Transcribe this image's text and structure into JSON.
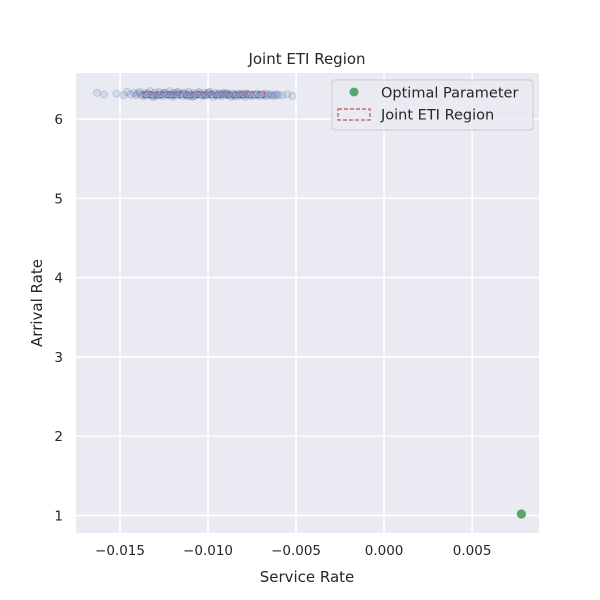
{
  "chart_data": {
    "type": "scatter",
    "title": "Joint ETI Region",
    "xlabel": "Service Rate",
    "ylabel": "Arrival Rate",
    "xlim": [
      -0.0175,
      0.0088
    ],
    "ylim": [
      0.78,
      6.58
    ],
    "x_ticks": [
      -0.015,
      -0.01,
      -0.005,
      0.0,
      0.005
    ],
    "x_tick_labels": [
      "−0.015",
      "−0.010",
      "−0.005",
      "0.000",
      "0.005"
    ],
    "y_ticks": [
      1,
      2,
      3,
      4,
      5,
      6
    ],
    "y_tick_labels": [
      "1",
      "2",
      "3",
      "4",
      "5",
      "6"
    ],
    "grid": true,
    "legend_position": "top-right",
    "background": "#eaeaf2",
    "series": [
      {
        "name": "Optimal Parameter",
        "kind": "point",
        "color": "#55a868",
        "x": [
          0.0078
        ],
        "y": [
          1.02
        ]
      },
      {
        "name": "Joint ETI Region",
        "kind": "rectangle",
        "color": "#c44e52",
        "x_range": [
          -0.0137,
          -0.0068
        ],
        "y_range": [
          6.27,
          6.34
        ]
      }
    ],
    "samples": {
      "color": "#4c72b0",
      "x": [
        -0.0163,
        -0.0159,
        -0.0152,
        -0.0148,
        -0.0146,
        -0.0144,
        -0.0142,
        -0.0141,
        -0.014,
        -0.0139,
        -0.0138,
        -0.0137,
        -0.0136,
        -0.0135,
        -0.0134,
        -0.0133,
        -0.0132,
        -0.0131,
        -0.013,
        -0.0129,
        -0.0128,
        -0.0127,
        -0.0126,
        -0.0125,
        -0.0124,
        -0.0123,
        -0.0122,
        -0.0121,
        -0.012,
        -0.0119,
        -0.0118,
        -0.0117,
        -0.0116,
        -0.0115,
        -0.0114,
        -0.0113,
        -0.0112,
        -0.0111,
        -0.011,
        -0.0109,
        -0.0108,
        -0.0107,
        -0.0106,
        -0.0105,
        -0.0104,
        -0.0103,
        -0.0102,
        -0.0101,
        -0.01,
        -0.0099,
        -0.0098,
        -0.0097,
        -0.0096,
        -0.0095,
        -0.0094,
        -0.0093,
        -0.0092,
        -0.0091,
        -0.009,
        -0.0089,
        -0.0088,
        -0.0087,
        -0.0086,
        -0.0085,
        -0.0084,
        -0.0083,
        -0.0082,
        -0.0081,
        -0.008,
        -0.0079,
        -0.0078,
        -0.0077,
        -0.0076,
        -0.0075,
        -0.0074,
        -0.0073,
        -0.0072,
        -0.0071,
        -0.007,
        -0.0069,
        -0.0068,
        -0.0067,
        -0.0066,
        -0.0065,
        -0.0064,
        -0.0063,
        -0.0062,
        -0.0061,
        -0.006,
        -0.0058,
        -0.0055,
        -0.0052,
        -0.0135,
        -0.013,
        -0.0125,
        -0.012,
        -0.0115,
        -0.011,
        -0.0105,
        -0.01,
        -0.0095,
        -0.009,
        -0.0085,
        -0.008,
        -0.0128,
        -0.0118,
        -0.0108,
        -0.0098,
        -0.0088,
        -0.0078,
        -0.0122,
        -0.0112,
        -0.0102,
        -0.0092,
        -0.0082,
        -0.0132
      ],
      "y": [
        6.33,
        6.31,
        6.32,
        6.3,
        6.34,
        6.31,
        6.33,
        6.3,
        6.32,
        6.34,
        6.31,
        6.29,
        6.33,
        6.3,
        6.32,
        6.35,
        6.31,
        6.28,
        6.33,
        6.3,
        6.34,
        6.31,
        6.29,
        6.33,
        6.32,
        6.3,
        6.35,
        6.31,
        6.28,
        6.33,
        6.3,
        6.34,
        6.31,
        6.29,
        6.32,
        6.33,
        6.3,
        6.34,
        6.31,
        6.28,
        6.33,
        6.3,
        6.32,
        6.34,
        6.31,
        6.29,
        6.33,
        6.3,
        6.32,
        6.34,
        6.31,
        6.28,
        6.33,
        6.3,
        6.32,
        6.31,
        6.29,
        6.33,
        6.3,
        6.32,
        6.31,
        6.28,
        6.32,
        6.3,
        6.31,
        6.29,
        6.32,
        6.3,
        6.31,
        6.28,
        6.32,
        6.3,
        6.31,
        6.29,
        6.31,
        6.3,
        6.32,
        6.29,
        6.31,
        6.3,
        6.32,
        6.29,
        6.31,
        6.3,
        6.31,
        6.29,
        6.3,
        6.31,
        6.3,
        6.3,
        6.31,
        6.29,
        6.31,
        6.29,
        6.33,
        6.3,
        6.32,
        6.29,
        6.31,
        6.33,
        6.3,
        6.32,
        6.29,
        6.31,
        6.3,
        6.33,
        6.29,
        6.31,
        6.3,
        6.32,
        6.31,
        6.29,
        6.3,
        6.32,
        6.31,
        6.29
      ]
    }
  }
}
